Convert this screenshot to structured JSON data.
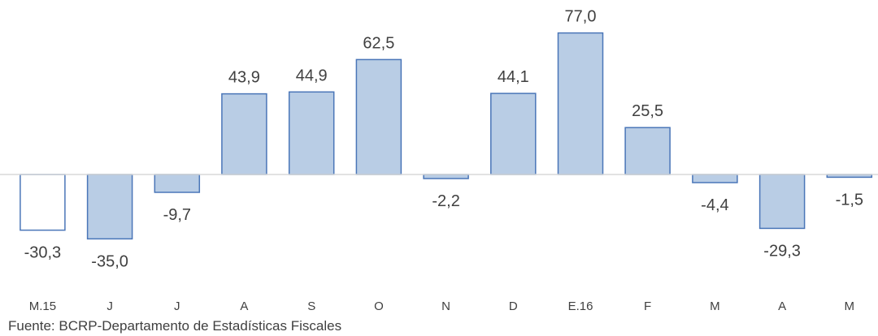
{
  "chart_data": {
    "type": "bar",
    "categories": [
      "M.15",
      "J",
      "J",
      "A",
      "S",
      "O",
      "N",
      "D",
      "E.16",
      "F",
      "M",
      "A",
      "M"
    ],
    "values": [
      -30.3,
      -35.0,
      -9.7,
      43.9,
      44.9,
      62.5,
      -2.2,
      44.1,
      77.0,
      25.5,
      -4.4,
      -29.3,
      -1.5
    ],
    "value_labels": [
      "-30,3",
      "-35,0",
      "-9,7",
      "43,9",
      "44,9",
      "62,5",
      "-2,2",
      "44,1",
      "77,0",
      "25,5",
      "-4,4",
      "-29,3",
      "-1,5"
    ],
    "highlighted_index": 0,
    "title": "",
    "xlabel": "",
    "ylabel": "",
    "ylim": [
      -45,
      80
    ],
    "grid": false,
    "legend": "none",
    "colors": {
      "bar_fill": "#B9CDE5",
      "bar_stroke": "#4A76B8",
      "highlight_fill": "#FFFFFF",
      "axis": "#D9D9D9",
      "text": "#404040"
    }
  },
  "footer": {
    "source": "Fuente: BCRP-Departamento de Estadísticas Fiscales"
  }
}
